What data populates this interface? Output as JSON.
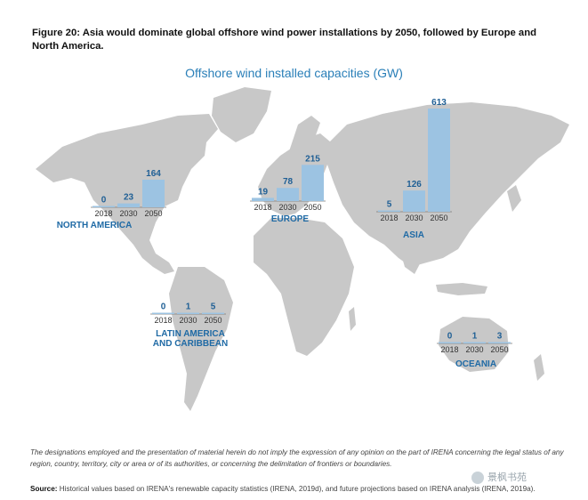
{
  "figure": {
    "title": "Figure 20: Asia would dominate global offshore wind power installations by 2050, followed by Europe and North America."
  },
  "chart_data": {
    "type": "bar",
    "title": "Offshore wind installed capacities (GW)",
    "categories": [
      "2018",
      "2030",
      "2050"
    ],
    "series": [
      {
        "name": "NORTH AMERICA",
        "values": [
          0,
          23,
          164
        ]
      },
      {
        "name": "EUROPE",
        "values": [
          19,
          78,
          215
        ]
      },
      {
        "name": "ASIA",
        "values": [
          5,
          126,
          613
        ]
      },
      {
        "name": "LATIN AMERICA AND CARIBBEAN",
        "values": [
          0,
          1,
          5
        ]
      },
      {
        "name": "OCEANIA",
        "values": [
          0,
          1,
          3
        ]
      }
    ],
    "colors": {
      "bar": "#9cc3e2",
      "title": "#2a7fb8",
      "region_label": "#1f6aa5",
      "map": "#c8c8c8"
    }
  },
  "note": "The designations employed and the presentation of material herein do not imply the expression of any opinion on the part of IRENA concerning the legal status of any region, country, territory, city or area or of its authorities, or concerning the delimitation of frontiers or boundaries.",
  "source": {
    "label": "Source:",
    "text": "Historical values based on IRENA's renewable capacity statistics (IRENA, 2019d), and future projections based on IRENA analysis (IRENA, 2019a)."
  },
  "watermark": "景枫书苑"
}
